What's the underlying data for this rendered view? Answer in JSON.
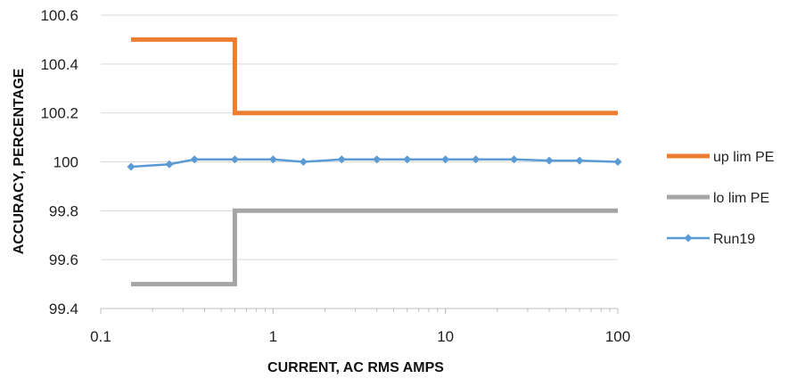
{
  "chart_data": {
    "type": "line",
    "xscale": "log",
    "xlabel": "CURRENT, AC RMS AMPS",
    "ylabel": "ACCURACY, PERCENTAGE",
    "xlim": [
      0.1,
      100
    ],
    "ylim": [
      99.4,
      100.6
    ],
    "x_ticks": [
      0.1,
      1,
      10,
      100
    ],
    "x_tick_labels": [
      "0.1",
      "1",
      "10",
      "100"
    ],
    "y_ticks": [
      99.4,
      99.6,
      99.8,
      100,
      100.2,
      100.4,
      100.6
    ],
    "y_tick_labels": [
      "99.4",
      "99.6",
      "99.8",
      "100",
      "100.2",
      "100.4",
      "100.6"
    ],
    "grid": "horizontal",
    "legend_position": "right",
    "series": [
      {
        "name": "up lim PE",
        "color": "#ED7D31",
        "line_style": "step",
        "marker": "none",
        "x": [
          0.15,
          0.6,
          0.6,
          100
        ],
        "y": [
          100.5,
          100.5,
          100.2,
          100.2
        ]
      },
      {
        "name": "lo lim PE",
        "color": "#A5A5A5",
        "line_style": "step",
        "marker": "none",
        "x": [
          0.15,
          0.6,
          0.6,
          100
        ],
        "y": [
          99.5,
          99.5,
          99.8,
          99.8
        ]
      },
      {
        "name": "Run19",
        "color": "#5B9BD5",
        "line_style": "line",
        "marker": "diamond",
        "x": [
          0.15,
          0.25,
          0.35,
          0.6,
          1,
          1.5,
          2.5,
          4,
          6,
          10,
          15,
          25,
          40,
          60,
          100
        ],
        "y": [
          99.98,
          99.99,
          100.01,
          100.01,
          100.01,
          100.0,
          100.01,
          100.01,
          100.01,
          100.01,
          100.01,
          100.01,
          100.005,
          100.005,
          100.0
        ]
      }
    ]
  }
}
